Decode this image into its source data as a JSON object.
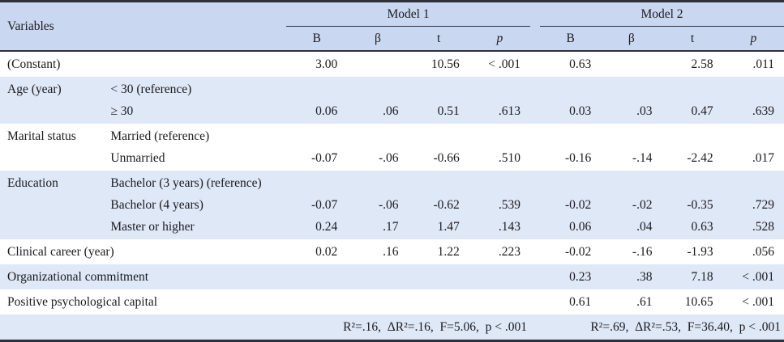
{
  "header": {
    "variables": "Variables",
    "model1": "Model 1",
    "model2": "Model 2",
    "subcols": [
      "B",
      "β",
      "t",
      "p"
    ]
  },
  "rows": [
    {
      "variable": "(Constant)",
      "lines": [
        {
          "sub": "",
          "m1": [
            "3.00",
            "",
            "10.56",
            "< .001"
          ],
          "m2": [
            "0.63",
            "",
            "2.58",
            ".011"
          ]
        }
      ]
    },
    {
      "variable": "Age (year)",
      "lines": [
        {
          "sub": "< 30 (reference)",
          "m1": [
            "",
            "",
            "",
            ""
          ],
          "m2": [
            "",
            "",
            "",
            ""
          ]
        },
        {
          "sub": "≥ 30",
          "m1": [
            "0.06",
            ".06",
            "0.51",
            ".613"
          ],
          "m2": [
            "0.03",
            ".03",
            "0.47",
            ".639"
          ]
        }
      ]
    },
    {
      "variable": "Marital status",
      "lines": [
        {
          "sub": "Married (reference)",
          "m1": [
            "",
            "",
            "",
            ""
          ],
          "m2": [
            "",
            "",
            "",
            ""
          ]
        },
        {
          "sub": "Unmarried",
          "m1": [
            "-0.07",
            "-.06",
            "-0.66",
            ".510"
          ],
          "m2": [
            "-0.16",
            "-.14",
            "-2.42",
            ".017"
          ]
        }
      ]
    },
    {
      "variable": "Education",
      "lines": [
        {
          "sub": "Bachelor (3 years) (reference)",
          "m1": [
            "",
            "",
            "",
            ""
          ],
          "m2": [
            "",
            "",
            "",
            ""
          ]
        },
        {
          "sub": "Bachelor (4 years)",
          "m1": [
            "-0.07",
            "-.06",
            "-0.62",
            ".539"
          ],
          "m2": [
            "-0.02",
            "-.02",
            "-0.35",
            ".729"
          ]
        },
        {
          "sub": "Master or higher",
          "m1": [
            "0.24",
            ".17",
            "1.47",
            ".143"
          ],
          "m2": [
            "0.06",
            ".04",
            "0.63",
            ".528"
          ]
        }
      ]
    },
    {
      "variable": "Clinical career (year)",
      "lines": [
        {
          "sub": "",
          "m1": [
            "0.02",
            ".16",
            "1.22",
            ".223"
          ],
          "m2": [
            "-0.02",
            "-.16",
            "-1.93",
            ".056"
          ]
        }
      ]
    },
    {
      "variable": "Organizational commitment",
      "lines": [
        {
          "sub": "",
          "m1": [
            "",
            "",
            "",
            ""
          ],
          "m2": [
            "0.23",
            ".38",
            "7.18",
            "< .001"
          ]
        }
      ]
    },
    {
      "variable": "Positive psychological capital",
      "lines": [
        {
          "sub": "",
          "m1": [
            "",
            "",
            "",
            ""
          ],
          "m2": [
            "0.61",
            ".61",
            "10.65",
            "< .001"
          ]
        }
      ]
    }
  ],
  "footer": {
    "model1_stats": "R²=.16,  ΔR²=.16,  F=5.06,  p < .001",
    "model2_stats": "R²=.69,  ΔR²=.53,  F=36.40,  p < .001"
  },
  "colors": {
    "header_bg": "#cad7f0",
    "stripe_bg": "#dfe8f7",
    "rule": "#30303a"
  }
}
